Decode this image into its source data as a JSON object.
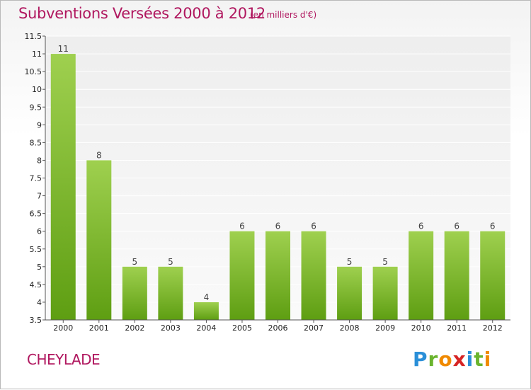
{
  "header": {
    "title": "Subventions Versées 2000 à 2012",
    "units": "(en milliers d'€)"
  },
  "footer": {
    "commune": "CHEYLADE",
    "logo_letters": [
      "P",
      "r",
      "o",
      "x",
      "i",
      "t",
      "i"
    ],
    "logo_colors": [
      "#2a8fd8",
      "#6ab42e",
      "#f08a00",
      "#d62424",
      "#2a8fd8",
      "#6ab42e",
      "#f08a00"
    ]
  },
  "chart_data": {
    "type": "bar",
    "title": "Subventions Versées 2000 à 2012",
    "subtitle": "(en milliers d'€)",
    "categories": [
      "2000",
      "2001",
      "2002",
      "2003",
      "2004",
      "2005",
      "2006",
      "2007",
      "2008",
      "2009",
      "2010",
      "2011",
      "2012"
    ],
    "values": [
      11,
      8,
      5,
      5,
      4,
      6,
      6,
      6,
      5,
      5,
      6,
      6,
      6
    ],
    "data_labels": [
      "11",
      "8",
      "5",
      "5",
      "4",
      "6",
      "6",
      "6",
      "5",
      "5",
      "6",
      "6",
      "6"
    ],
    "ylim": [
      3.5,
      11.5
    ],
    "yticks": [
      3.5,
      4,
      4.5,
      5,
      5.5,
      6,
      6.5,
      7,
      7.5,
      8,
      8.5,
      9,
      9.5,
      10,
      10.5,
      11,
      11.5
    ],
    "ytick_labels": [
      "3.5",
      "4",
      "4.5",
      "5",
      "5.5",
      "6",
      "6.5",
      "7",
      "7.5",
      "8",
      "8.5",
      "9",
      "9.5",
      "10",
      "10.5",
      "11",
      "11.5"
    ],
    "grid": true,
    "bar_color_top": "#9fd04f",
    "bar_color_bottom": "#5e9e12"
  }
}
